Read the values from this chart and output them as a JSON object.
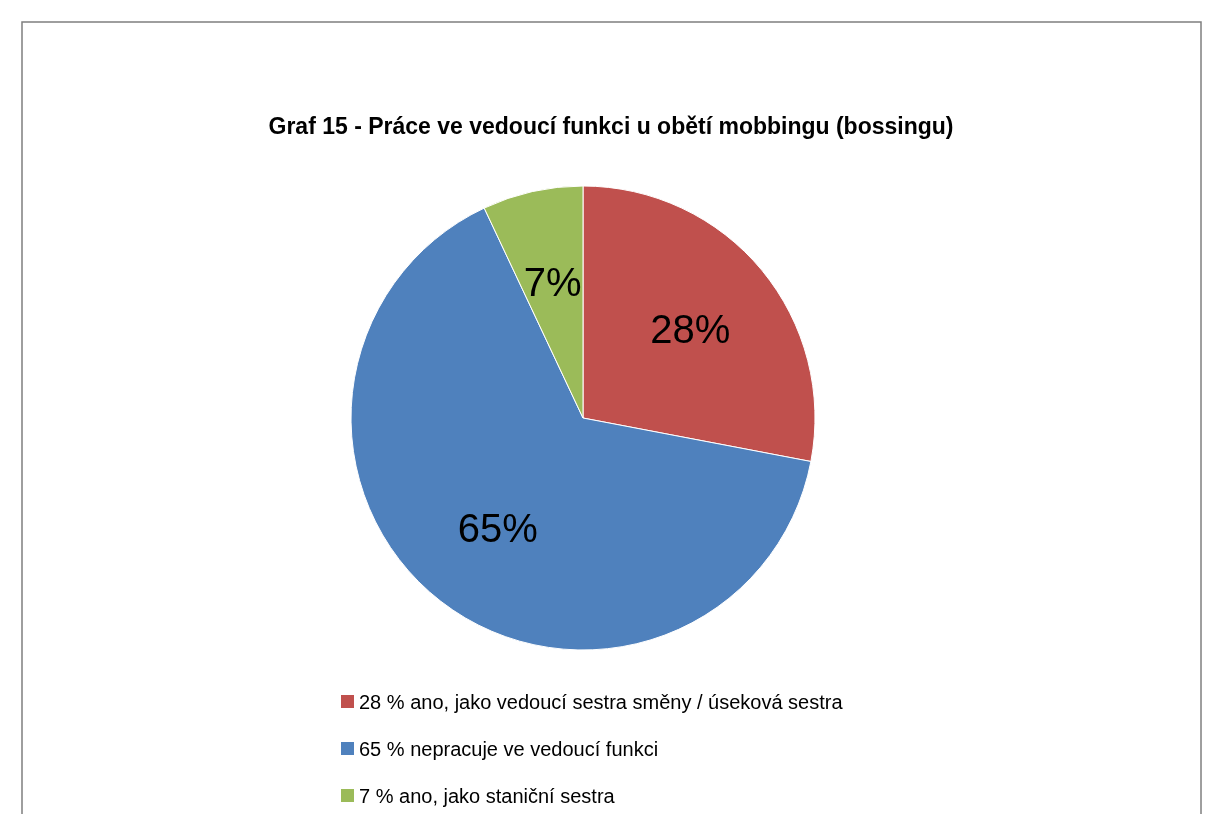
{
  "chart_data": {
    "type": "pie",
    "title": "Graf 15 - Práce ve vedoucí funkci u obětí mobbingu (bossingu)",
    "categories": [
      "28 % ano, jako vedoucí sestra směny / úseková sestra",
      "65 % nepracuje ve vedoucí funkci",
      "7 % ano, jako staniční sestra"
    ],
    "values": [
      28,
      65,
      7
    ],
    "colors": [
      "#c0504d",
      "#4f81bd",
      "#9bbb59"
    ],
    "value_labels": [
      "28%",
      "65%",
      "7%"
    ],
    "legend": "bottom"
  }
}
